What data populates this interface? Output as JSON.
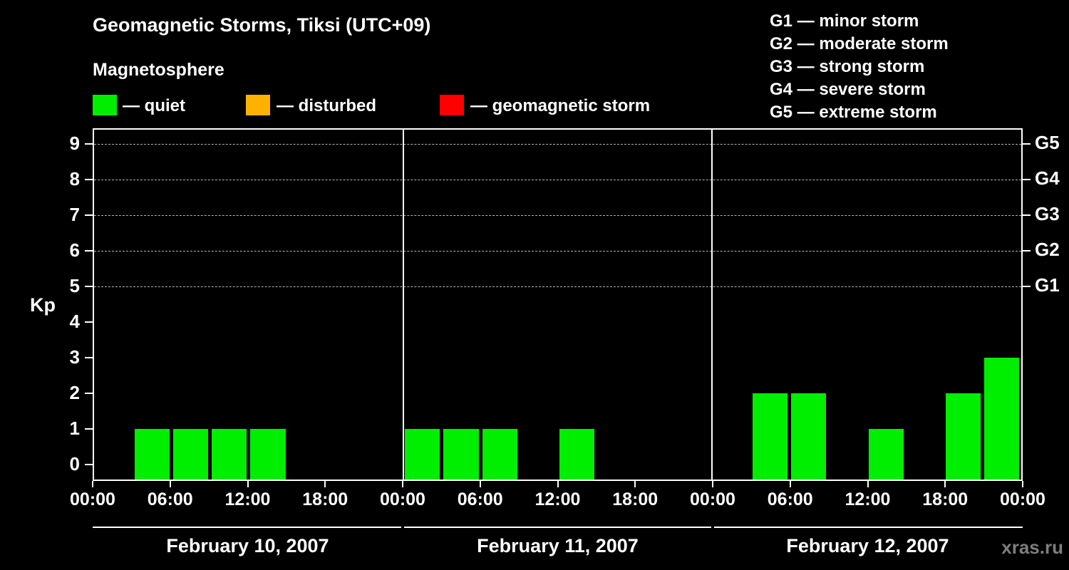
{
  "chart_data": {
    "type": "bar",
    "title": "Geomagnetic Storms, Tiksi (UTC+09)",
    "subtitle": "Magnetosphere",
    "ylabel": "Kp",
    "ylim": [
      0,
      9
    ],
    "grid": true,
    "bar_color": "#00ee00",
    "grid_kp_levels": [
      5,
      6,
      7,
      8,
      9
    ],
    "legend": [
      {
        "label": "— quiet",
        "color": "#00ee00"
      },
      {
        "label": "— disturbed",
        "color": "#ffb100"
      },
      {
        "label": "— geomagnetic storm",
        "color": "#ff0000"
      }
    ],
    "storm_scale": [
      "G1 — minor storm",
      "G2 — moderate storm",
      "G3 — strong storm",
      "G4 — severe storm",
      "G5 — extreme storm"
    ],
    "right_axis_labels": [
      {
        "label": "G5",
        "kp": 9
      },
      {
        "label": "G4",
        "kp": 8
      },
      {
        "label": "G3",
        "kp": 7
      },
      {
        "label": "G2",
        "kp": 6
      },
      {
        "label": "G1",
        "kp": 5
      }
    ],
    "y_tick_labels": [
      "0",
      "1",
      "2",
      "3",
      "4",
      "5",
      "6",
      "7",
      "8",
      "9"
    ],
    "x_tick_labels": [
      "00:00",
      "06:00",
      "12:00",
      "18:00"
    ],
    "x_axis_end_label": "00:00",
    "interval_hours": 3,
    "days": [
      {
        "date": "February 10, 2007",
        "values": [
          0,
          1,
          1,
          1,
          1,
          0,
          0,
          0
        ]
      },
      {
        "date": "February 11, 2007",
        "values": [
          1,
          1,
          1,
          0,
          1,
          0,
          0,
          0
        ]
      },
      {
        "date": "February 12, 2007",
        "values": [
          0,
          2,
          2,
          0,
          1,
          0,
          2,
          3
        ]
      }
    ],
    "watermark": "xras.ru"
  }
}
